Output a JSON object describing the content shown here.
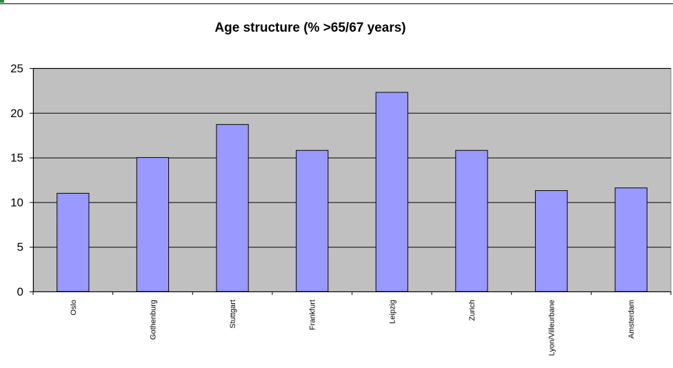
{
  "colors": {
    "plot_background": "#c0c0c0",
    "bar_fill": "#9999ff",
    "bar_stroke": "#000000",
    "accent": "#2e8b3a"
  },
  "chart_data": {
    "type": "bar",
    "title": "Age structure (% >65/67 years)",
    "xlabel": "",
    "ylabel": "",
    "categories": [
      "Oslo",
      "Gothenburg",
      "Stuttgart",
      "Frankfurt",
      "Leipzig",
      "Zurich",
      "Lyon/Villeurbane",
      "Amsterdam"
    ],
    "values": [
      11.0,
      15.0,
      18.7,
      15.8,
      22.3,
      15.8,
      11.3,
      11.6
    ],
    "ylim": [
      0,
      25
    ],
    "yticks": [
      0,
      5,
      10,
      15,
      20,
      25
    ],
    "grid": true,
    "legend": "none"
  }
}
